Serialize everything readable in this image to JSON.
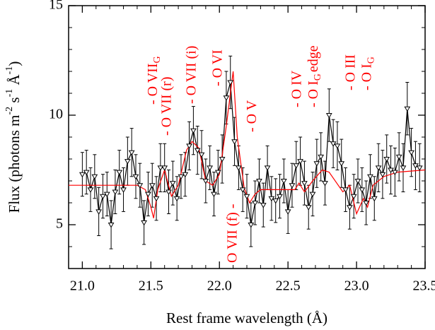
{
  "chart_data": {
    "type": "spectrum",
    "xlabel": "Rest frame wavelength (Å)",
    "ylabel": [
      {
        "text": "Flux (photons m"
      },
      {
        "text": "-2",
        "sup": true
      },
      {
        "text": " s"
      },
      {
        "text": "-1",
        "sup": true
      },
      {
        "text": " Å"
      },
      {
        "text": "-1",
        "sup": true
      },
      {
        "text": ")"
      }
    ],
    "xlim": [
      20.9,
      23.5
    ],
    "ylim": [
      3,
      15
    ],
    "xticks": [
      {
        "value": 21,
        "label": "21.0"
      },
      21.5,
      {
        "value": 22,
        "label": "22.0"
      },
      22.5,
      {
        "value": 23,
        "label": "23.0"
      },
      23.5
    ],
    "yticks": [
      5,
      10,
      15
    ],
    "xminorticks": [
      21.1,
      21.2,
      21.3,
      21.4,
      21.6,
      21.7,
      21.8,
      21.9,
      22.1,
      22.2,
      22.3,
      22.4,
      22.6,
      22.7,
      22.8,
      22.9,
      23.1,
      23.2,
      23.3,
      23.4
    ],
    "yminorticks": [
      4,
      6,
      7,
      8,
      9,
      11,
      12,
      13,
      14
    ],
    "data": {
      "color": "#000000",
      "x": [
        21.0,
        21.03,
        21.06,
        21.09,
        21.12,
        21.15,
        21.18,
        21.21,
        21.24,
        21.27,
        21.3,
        21.33,
        21.36,
        21.39,
        21.42,
        21.45,
        21.48,
        21.51,
        21.54,
        21.57,
        21.6,
        21.63,
        21.66,
        21.69,
        21.72,
        21.75,
        21.78,
        21.81,
        21.84,
        21.87,
        21.9,
        21.93,
        21.96,
        21.99,
        22.02,
        22.05,
        22.08,
        22.11,
        22.14,
        22.17,
        22.2,
        22.23,
        22.26,
        22.29,
        22.32,
        22.35,
        22.38,
        22.41,
        22.44,
        22.47,
        22.5,
        22.53,
        22.56,
        22.59,
        22.62,
        22.65,
        22.68,
        22.71,
        22.74,
        22.77,
        22.8,
        22.83,
        22.86,
        22.89,
        22.92,
        22.95,
        22.98,
        23.01,
        23.04,
        23.07,
        23.1,
        23.13,
        23.16,
        23.19,
        23.22,
        23.25,
        23.28,
        23.31,
        23.34,
        23.37,
        23.4,
        23.43,
        23.46
      ],
      "values": [
        7.3,
        7.4,
        6.6,
        7.2,
        5.6,
        6.3,
        6.4,
        5.0,
        6.5,
        7.4,
        6.6,
        7.9,
        8.3,
        7.2,
        6.8,
        5.1,
        6.4,
        6.8,
        6.2,
        7.6,
        7.6,
        6.5,
        6.9,
        6.2,
        7.2,
        7.3,
        8.6,
        9.3,
        8.4,
        8.2,
        7.0,
        7.6,
        6.4,
        7.4,
        8.0,
        10.8,
        11.5,
        8.8,
        7.6,
        6.6,
        6.3,
        5.0,
        6.0,
        7.0,
        5.9,
        7.6,
        6.2,
        6.1,
        6.3,
        7.0,
        5.6,
        6.8,
        7.7,
        7.9,
        6.9,
        5.8,
        6.4,
        7.8,
        8.1,
        6.9,
        10.0,
        8.7,
        8.6,
        7.8,
        6.6,
        5.8,
        6.3,
        7.0,
        6.6,
        6.0,
        7.2,
        6.2,
        7.6,
        7.3,
        8.0,
        7.5,
        7.4,
        8.1,
        7.6,
        10.3,
        8.3,
        7.7,
        7.6
      ],
      "errors": [
        1.0,
        1.0,
        1.0,
        1.0,
        1.1,
        1.0,
        1.0,
        1.1,
        1.0,
        1.0,
        1.0,
        1.1,
        1.1,
        1.0,
        1.0,
        1.0,
        1.0,
        1.0,
        1.0,
        1.1,
        1.1,
        1.0,
        1.0,
        1.0,
        1.0,
        1.0,
        1.1,
        1.1,
        1.1,
        1.1,
        1.0,
        1.0,
        1.0,
        1.0,
        1.1,
        1.2,
        1.2,
        1.1,
        1.0,
        1.0,
        1.0,
        1.0,
        1.0,
        1.0,
        1.0,
        1.0,
        1.0,
        1.0,
        1.0,
        1.0,
        1.0,
        1.0,
        1.1,
        1.1,
        1.0,
        1.0,
        1.0,
        1.1,
        1.1,
        1.0,
        1.2,
        1.1,
        1.1,
        1.1,
        1.0,
        1.0,
        1.0,
        1.0,
        1.0,
        1.0,
        1.0,
        1.0,
        1.1,
        1.1,
        1.1,
        1.1,
        1.1,
        1.1,
        1.1,
        1.2,
        1.1,
        1.1,
        1.1
      ]
    },
    "model": {
      "color": "#ff0000",
      "x": [
        20.9,
        21.4,
        21.46,
        21.5,
        21.52,
        21.55,
        21.6,
        21.65,
        21.7,
        21.76,
        21.8,
        21.85,
        21.9,
        21.95,
        22.0,
        22.05,
        22.1,
        22.13,
        22.18,
        22.22,
        22.26,
        22.3,
        22.55,
        22.58,
        22.62,
        22.68,
        22.75,
        22.8,
        22.9,
        22.95,
        23.0,
        23.05,
        23.08,
        23.12,
        23.2,
        23.3,
        23.5
      ],
      "values": [
        6.8,
        6.8,
        6.6,
        5.8,
        5.3,
        6.6,
        7.5,
        6.3,
        6.8,
        8.4,
        8.8,
        8.5,
        7.0,
        6.8,
        7.3,
        9.5,
        12.0,
        9.0,
        6.7,
        6.0,
        6.4,
        6.6,
        6.6,
        6.9,
        6.5,
        7.0,
        7.5,
        7.4,
        6.5,
        6.8,
        5.5,
        6.2,
        5.8,
        6.8,
        7.2,
        7.4,
        7.5
      ]
    },
    "annotations": [
      {
        "x": 21.52,
        "text": "- O VII",
        "sub": "G"
      },
      {
        "x": 21.62,
        "text": "- O VII (r)"
      },
      {
        "x": 21.8,
        "text": "- O VII (i)"
      },
      {
        "x": 21.99,
        "text": "- O VI"
      },
      {
        "x": 22.1,
        "text": "O VII (f) -"
      },
      {
        "x": 22.24,
        "text": "- O V"
      },
      {
        "x": 22.57,
        "text": "- O IV"
      },
      {
        "x": 22.69,
        "text": "- O I",
        "sub": "G",
        "suffix": "edge"
      },
      {
        "x": 22.96,
        "text": "- O III"
      },
      {
        "x": 23.08,
        "text": "- O I",
        "sub": "G"
      }
    ]
  }
}
